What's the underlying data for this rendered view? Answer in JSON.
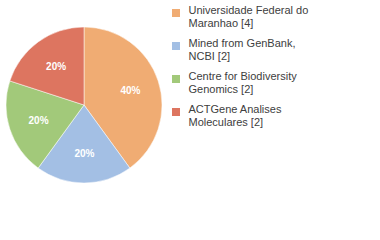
{
  "chart_data": {
    "type": "pie",
    "categories": [
      "Universidade Federal do Maranhao [4]",
      "Mined from GenBank, NCBI [2]",
      "Centre for Biodiversity Genomics [2]",
      "ACTGene Analises Moleculares [2]"
    ],
    "values": [
      40,
      20,
      20,
      20
    ],
    "value_labels": [
      "40%",
      "20%",
      "20%",
      "20%"
    ],
    "colors": [
      "#f0ac73",
      "#a3bfe4",
      "#a2c97a",
      "#dd7560"
    ],
    "data_labels": true,
    "legend": "right"
  }
}
